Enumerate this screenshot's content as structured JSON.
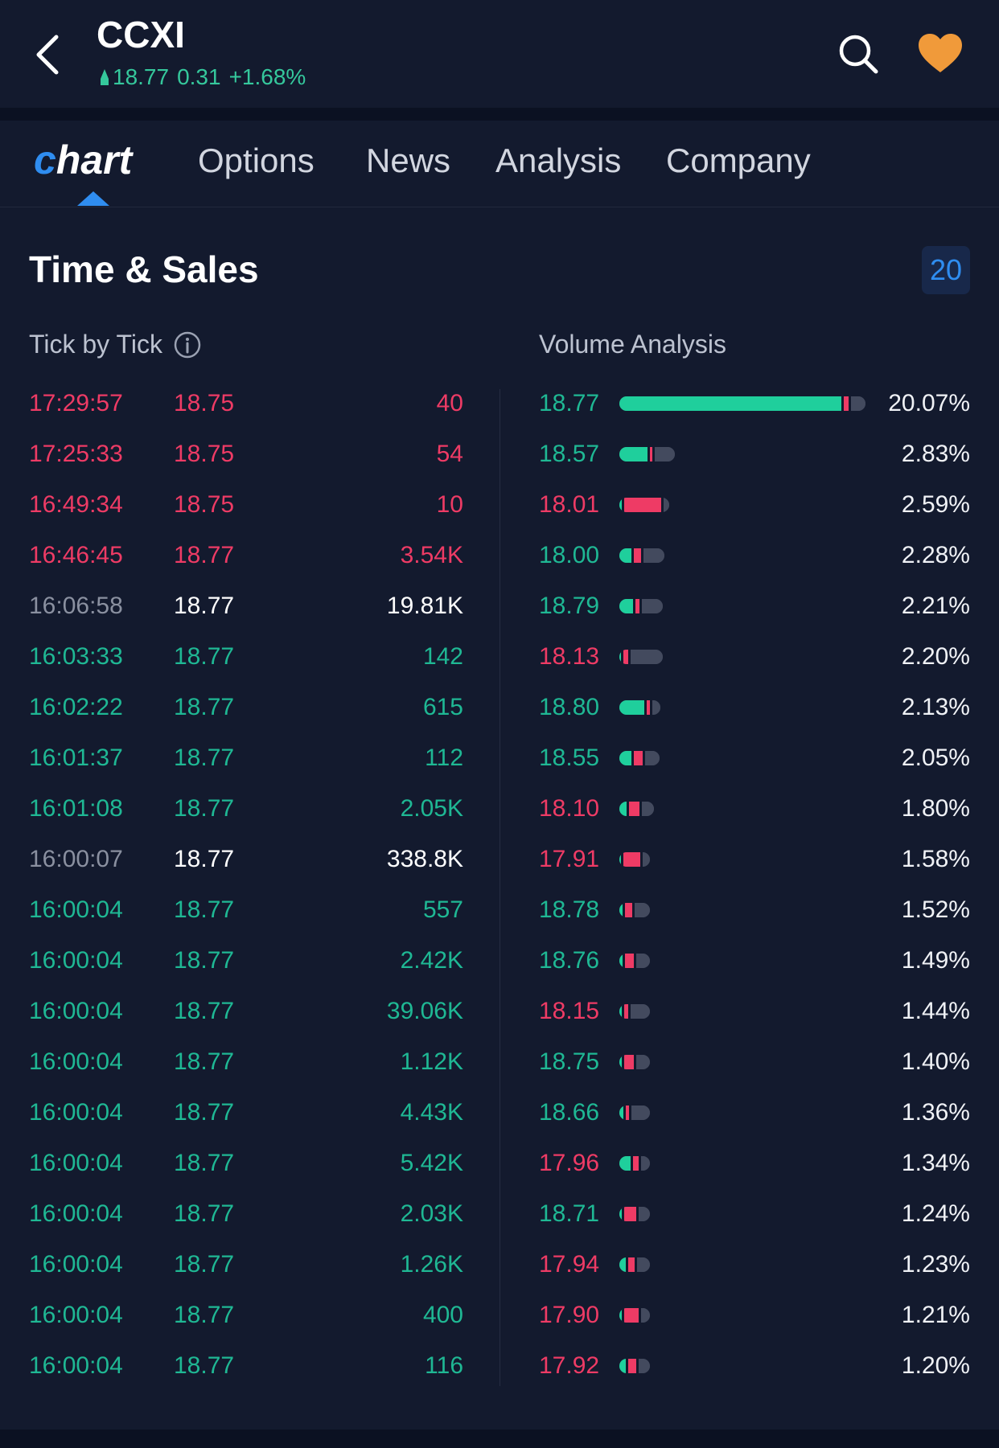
{
  "header": {
    "ticker": "CCXI",
    "price": "18.77",
    "change": "0.31",
    "change_pct": "+1.68%",
    "colors": {
      "up": "#35c89c",
      "fav": "#f09a3a"
    }
  },
  "tabs": [
    {
      "label": "Chart",
      "active": true
    },
    {
      "label": "Options"
    },
    {
      "label": "News"
    },
    {
      "label": "Analysis"
    },
    {
      "label": "Company"
    }
  ],
  "section": {
    "title": "Time & Sales",
    "count": "20"
  },
  "tick_by_tick": {
    "header": "Tick by Tick",
    "rows": [
      {
        "time": "17:29:57",
        "price": "18.75",
        "volume": "40",
        "side": "sell"
      },
      {
        "time": "17:25:33",
        "price": "18.75",
        "volume": "54",
        "side": "sell"
      },
      {
        "time": "16:49:34",
        "price": "18.75",
        "volume": "10",
        "side": "sell"
      },
      {
        "time": "16:46:45",
        "price": "18.77",
        "volume": "3.54K",
        "side": "sell"
      },
      {
        "time": "16:06:58",
        "price": "18.77",
        "volume": "19.81K",
        "side": "neutral"
      },
      {
        "time": "16:03:33",
        "price": "18.77",
        "volume": "142",
        "side": "buy"
      },
      {
        "time": "16:02:22",
        "price": "18.77",
        "volume": "615",
        "side": "buy"
      },
      {
        "time": "16:01:37",
        "price": "18.77",
        "volume": "112",
        "side": "buy"
      },
      {
        "time": "16:01:08",
        "price": "18.77",
        "volume": "2.05K",
        "side": "buy"
      },
      {
        "time": "16:00:07",
        "price": "18.77",
        "volume": "338.8K",
        "side": "neutral"
      },
      {
        "time": "16:00:04",
        "price": "18.77",
        "volume": "557",
        "side": "buy"
      },
      {
        "time": "16:00:04",
        "price": "18.77",
        "volume": "2.42K",
        "side": "buy"
      },
      {
        "time": "16:00:04",
        "price": "18.77",
        "volume": "39.06K",
        "side": "buy"
      },
      {
        "time": "16:00:04",
        "price": "18.77",
        "volume": "1.12K",
        "side": "buy"
      },
      {
        "time": "16:00:04",
        "price": "18.77",
        "volume": "4.43K",
        "side": "buy"
      },
      {
        "time": "16:00:04",
        "price": "18.77",
        "volume": "5.42K",
        "side": "buy"
      },
      {
        "time": "16:00:04",
        "price": "18.77",
        "volume": "2.03K",
        "side": "buy"
      },
      {
        "time": "16:00:04",
        "price": "18.77",
        "volume": "1.26K",
        "side": "buy"
      },
      {
        "time": "16:00:04",
        "price": "18.77",
        "volume": "400",
        "side": "buy"
      },
      {
        "time": "16:00:04",
        "price": "18.77",
        "volume": "116",
        "side": "buy"
      }
    ]
  },
  "volume_analysis": {
    "header": "Volume Analysis",
    "rows": [
      {
        "price": "18.77",
        "pct": "20.07%",
        "color": "green",
        "buy": 0.92,
        "sell": 0.02,
        "neutral": 0.06
      },
      {
        "price": "18.57",
        "pct": "2.83%",
        "color": "green",
        "buy": 0.55,
        "sell": 0.05,
        "neutral": 0.4
      },
      {
        "price": "18.01",
        "pct": "2.59%",
        "color": "red",
        "buy": 0.05,
        "sell": 0.82,
        "neutral": 0.13
      },
      {
        "price": "18.00",
        "pct": "2.28%",
        "color": "green",
        "buy": 0.3,
        "sell": 0.18,
        "neutral": 0.52
      },
      {
        "price": "18.79",
        "pct": "2.21%",
        "color": "green",
        "buy": 0.35,
        "sell": 0.1,
        "neutral": 0.55
      },
      {
        "price": "18.13",
        "pct": "2.20%",
        "color": "red",
        "buy": 0.05,
        "sell": 0.12,
        "neutral": 0.83
      },
      {
        "price": "18.80",
        "pct": "2.13%",
        "color": "green",
        "buy": 0.68,
        "sell": 0.1,
        "neutral": 0.22
      },
      {
        "price": "18.55",
        "pct": "2.05%",
        "color": "green",
        "buy": 0.35,
        "sell": 0.25,
        "neutral": 0.4
      },
      {
        "price": "18.10",
        "pct": "1.80%",
        "color": "red",
        "buy": 0.25,
        "sell": 0.35,
        "neutral": 0.4
      },
      {
        "price": "17.91",
        "pct": "1.58%",
        "color": "red",
        "buy": 0.05,
        "sell": 0.68,
        "neutral": 0.27
      },
      {
        "price": "18.78",
        "pct": "1.52%",
        "color": "green",
        "buy": 0.12,
        "sell": 0.3,
        "neutral": 0.58
      },
      {
        "price": "18.76",
        "pct": "1.49%",
        "color": "green",
        "buy": 0.12,
        "sell": 0.35,
        "neutral": 0.53
      },
      {
        "price": "18.15",
        "pct": "1.44%",
        "color": "red",
        "buy": 0.1,
        "sell": 0.15,
        "neutral": 0.75
      },
      {
        "price": "18.75",
        "pct": "1.40%",
        "color": "green",
        "buy": 0.08,
        "sell": 0.4,
        "neutral": 0.52
      },
      {
        "price": "18.66",
        "pct": "1.36%",
        "color": "green",
        "buy": 0.15,
        "sell": 0.12,
        "neutral": 0.73
      },
      {
        "price": "17.96",
        "pct": "1.34%",
        "color": "red",
        "buy": 0.45,
        "sell": 0.2,
        "neutral": 0.35
      },
      {
        "price": "18.71",
        "pct": "1.24%",
        "color": "green",
        "buy": 0.1,
        "sell": 0.45,
        "neutral": 0.45
      },
      {
        "price": "17.94",
        "pct": "1.23%",
        "color": "red",
        "buy": 0.25,
        "sell": 0.25,
        "neutral": 0.5
      },
      {
        "price": "17.90",
        "pct": "1.21%",
        "color": "red",
        "buy": 0.1,
        "sell": 0.55,
        "neutral": 0.35
      },
      {
        "price": "17.92",
        "pct": "1.20%",
        "color": "red",
        "buy": 0.25,
        "sell": 0.3,
        "neutral": 0.45
      }
    ]
  }
}
